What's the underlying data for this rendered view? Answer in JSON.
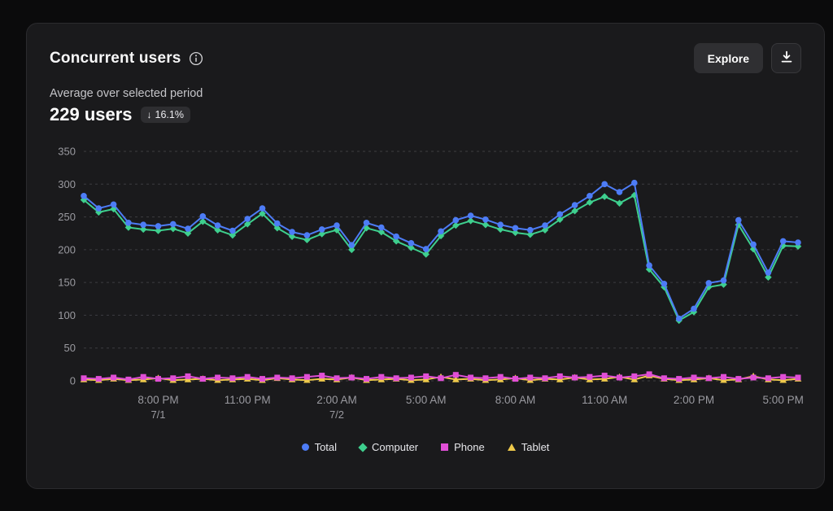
{
  "header": {
    "title": "Concurrent users",
    "explore_label": "Explore"
  },
  "summary": {
    "caption": "Average over selected period",
    "value": "229 users",
    "delta_arrow": "↓",
    "delta": "16.1%"
  },
  "colors": {
    "total": "#4d7cf6",
    "computer": "#3ecf8e",
    "phone": "#e14fd6",
    "tablet": "#eec94b",
    "grid": "#3d3d40",
    "axis_text": "#9a9aa0"
  },
  "chart_data": {
    "type": "line",
    "title": "Concurrent users",
    "xlabel": "",
    "ylabel": "",
    "ylim": [
      0,
      350
    ],
    "y_ticks": [
      0,
      50,
      100,
      150,
      200,
      250,
      300,
      350
    ],
    "grid": "dashed-horizontal",
    "legend_position": "bottom",
    "x_ticks": [
      {
        "index": 5,
        "label": "8:00 PM",
        "sublabel": "7/1"
      },
      {
        "index": 11,
        "label": "11:00 PM"
      },
      {
        "index": 17,
        "label": "2:00 AM",
        "sublabel": "7/2"
      },
      {
        "index": 23,
        "label": "5:00 AM"
      },
      {
        "index": 29,
        "label": "8:00 AM"
      },
      {
        "index": 35,
        "label": "11:00 AM"
      },
      {
        "index": 41,
        "label": "2:00 PM"
      },
      {
        "index": 47,
        "label": "5:00 PM"
      }
    ],
    "series": [
      {
        "name": "Total",
        "color": "#4d7cf6",
        "marker": "circle",
        "values": [
          282,
          263,
          269,
          241,
          238,
          236,
          239,
          232,
          251,
          237,
          229,
          247,
          263,
          240,
          227,
          222,
          231,
          237,
          207,
          241,
          234,
          220,
          210,
          201,
          228,
          245,
          252,
          246,
          238,
          233,
          230,
          237,
          254,
          268,
          282,
          300,
          288,
          302,
          176,
          148,
          95,
          110,
          149,
          153,
          245,
          208,
          165,
          213,
          211
        ]
      },
      {
        "name": "Computer",
        "color": "#3ecf8e",
        "marker": "diamond",
        "values": [
          276,
          257,
          262,
          234,
          231,
          229,
          232,
          225,
          243,
          230,
          222,
          239,
          255,
          233,
          220,
          215,
          224,
          230,
          200,
          233,
          227,
          213,
          203,
          193,
          221,
          237,
          244,
          238,
          231,
          226,
          223,
          230,
          246,
          259,
          272,
          281,
          271,
          283,
          170,
          143,
          92,
          105,
          143,
          147,
          238,
          201,
          158,
          206,
          205
        ]
      },
      {
        "name": "Phone",
        "color": "#e14fd6",
        "marker": "square",
        "values": [
          4,
          3,
          5,
          2,
          6,
          3,
          4,
          7,
          3,
          5,
          4,
          6,
          3,
          5,
          4,
          6,
          8,
          4,
          5,
          3,
          6,
          4,
          5,
          7,
          4,
          9,
          5,
          4,
          6,
          3,
          5,
          4,
          7,
          5,
          6,
          8,
          5,
          7,
          10,
          4,
          3,
          5,
          4,
          6,
          3,
          5,
          4,
          6,
          5
        ]
      },
      {
        "name": "Tablet",
        "color": "#eec94b",
        "marker": "triangle",
        "values": [
          2,
          1,
          3,
          1,
          2,
          4,
          1,
          2,
          3,
          1,
          2,
          3,
          1,
          4,
          2,
          1,
          3,
          2,
          5,
          1,
          2,
          3,
          1,
          2,
          6,
          2,
          3,
          1,
          2,
          4,
          1,
          3,
          2,
          5,
          2,
          3,
          6,
          2,
          8,
          3,
          1,
          2,
          4,
          1,
          2,
          7,
          2,
          1,
          3
        ]
      }
    ]
  }
}
